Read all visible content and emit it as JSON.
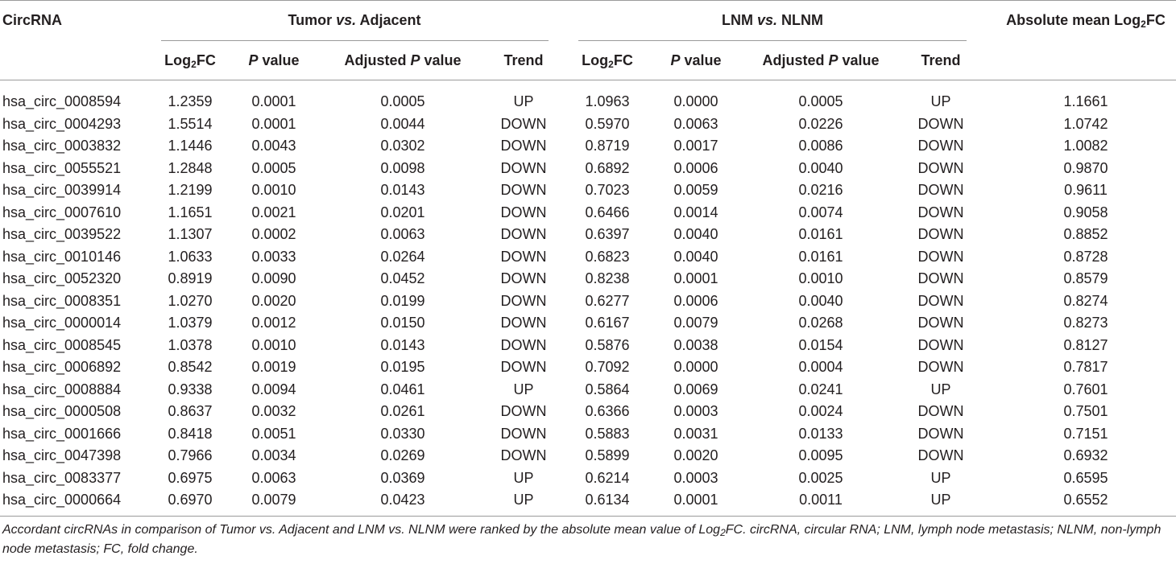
{
  "table": {
    "col_circrna": "CircRNA",
    "group1": {
      "prefix": "Tumor ",
      "vs": "vs.",
      "suffix": " Adjacent"
    },
    "group2": {
      "prefix": "LNM ",
      "vs": "vs.",
      "suffix": " NLNM"
    },
    "col_abs_mean": {
      "text": "Absolute mean Log",
      "sub": "2",
      "tail": "FC"
    },
    "sub_headers": {
      "log2fc": {
        "text": "Log",
        "sub": "2",
        "tail": "FC"
      },
      "p_value": {
        "p": "P",
        "rest": " value"
      },
      "adj_p_value": {
        "pre": "Adjusted ",
        "p": "P",
        "rest": " value"
      },
      "trend": "Trend"
    },
    "rows": [
      [
        "hsa_circ_0008594",
        "1.2359",
        "0.0001",
        "0.0005",
        "UP",
        "1.0963",
        "0.0000",
        "0.0005",
        "UP",
        "1.1661"
      ],
      [
        "hsa_circ_0004293",
        "1.5514",
        "0.0001",
        "0.0044",
        "DOWN",
        "0.5970",
        "0.0063",
        "0.0226",
        "DOWN",
        "1.0742"
      ],
      [
        "hsa_circ_0003832",
        "1.1446",
        "0.0043",
        "0.0302",
        "DOWN",
        "0.8719",
        "0.0017",
        "0.0086",
        "DOWN",
        "1.0082"
      ],
      [
        "hsa_circ_0055521",
        "1.2848",
        "0.0005",
        "0.0098",
        "DOWN",
        "0.6892",
        "0.0006",
        "0.0040",
        "DOWN",
        "0.9870"
      ],
      [
        "hsa_circ_0039914",
        "1.2199",
        "0.0010",
        "0.0143",
        "DOWN",
        "0.7023",
        "0.0059",
        "0.0216",
        "DOWN",
        "0.9611"
      ],
      [
        "hsa_circ_0007610",
        "1.1651",
        "0.0021",
        "0.0201",
        "DOWN",
        "0.6466",
        "0.0014",
        "0.0074",
        "DOWN",
        "0.9058"
      ],
      [
        "hsa_circ_0039522",
        "1.1307",
        "0.0002",
        "0.0063",
        "DOWN",
        "0.6397",
        "0.0040",
        "0.0161",
        "DOWN",
        "0.8852"
      ],
      [
        "hsa_circ_0010146",
        "1.0633",
        "0.0033",
        "0.0264",
        "DOWN",
        "0.6823",
        "0.0040",
        "0.0161",
        "DOWN",
        "0.8728"
      ],
      [
        "hsa_circ_0052320",
        "0.8919",
        "0.0090",
        "0.0452",
        "DOWN",
        "0.8238",
        "0.0001",
        "0.0010",
        "DOWN",
        "0.8579"
      ],
      [
        "hsa_circ_0008351",
        "1.0270",
        "0.0020",
        "0.0199",
        "DOWN",
        "0.6277",
        "0.0006",
        "0.0040",
        "DOWN",
        "0.8274"
      ],
      [
        "hsa_circ_0000014",
        "1.0379",
        "0.0012",
        "0.0150",
        "DOWN",
        "0.6167",
        "0.0079",
        "0.0268",
        "DOWN",
        "0.8273"
      ],
      [
        "hsa_circ_0008545",
        "1.0378",
        "0.0010",
        "0.0143",
        "DOWN",
        "0.5876",
        "0.0038",
        "0.0154",
        "DOWN",
        "0.8127"
      ],
      [
        "hsa_circ_0006892",
        "0.8542",
        "0.0019",
        "0.0195",
        "DOWN",
        "0.7092",
        "0.0000",
        "0.0004",
        "DOWN",
        "0.7817"
      ],
      [
        "hsa_circ_0008884",
        "0.9338",
        "0.0094",
        "0.0461",
        "UP",
        "0.5864",
        "0.0069",
        "0.0241",
        "UP",
        "0.7601"
      ],
      [
        "hsa_circ_0000508",
        "0.8637",
        "0.0032",
        "0.0261",
        "DOWN",
        "0.6366",
        "0.0003",
        "0.0024",
        "DOWN",
        "0.7501"
      ],
      [
        "hsa_circ_0001666",
        "0.8418",
        "0.0051",
        "0.0330",
        "DOWN",
        "0.5883",
        "0.0031",
        "0.0133",
        "DOWN",
        "0.7151"
      ],
      [
        "hsa_circ_0047398",
        "0.7966",
        "0.0034",
        "0.0269",
        "DOWN",
        "0.5899",
        "0.0020",
        "0.0095",
        "DOWN",
        "0.6932"
      ],
      [
        "hsa_circ_0083377",
        "0.6975",
        "0.0063",
        "0.0369",
        "UP",
        "0.6214",
        "0.0003",
        "0.0025",
        "UP",
        "0.6595"
      ],
      [
        "hsa_circ_0000664",
        "0.6970",
        "0.0079",
        "0.0423",
        "UP",
        "0.6134",
        "0.0001",
        "0.0011",
        "UP",
        "0.6552"
      ]
    ]
  },
  "caption": {
    "part1": "Accordant circRNAs in comparison of Tumor vs. Adjacent and LNM vs. NLNM were ranked by the absolute mean value of Log",
    "sub": "2",
    "part2": "FC. circRNA, circular RNA; LNM, lymph node metastasis; NLNM, non-lymph node metastasis; FC, fold change."
  }
}
